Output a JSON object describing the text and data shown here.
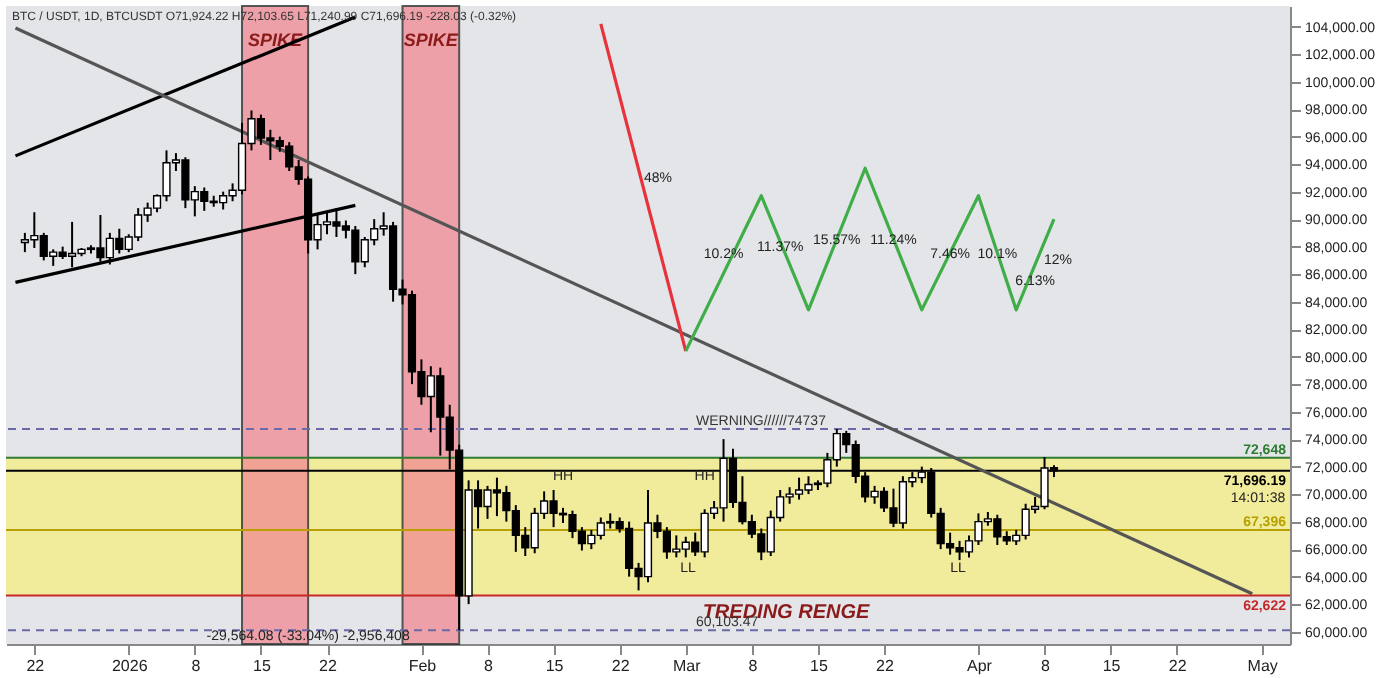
{
  "chart_data": {
    "type": "candlestick",
    "title": "BTC / USDT, 1D, BTCUSDT  O71,924.22 H72,103.65 L71,240.99 C71,696.19 -228.03 (-0.32%)",
    "x": [
      "2025-12-21",
      "2025-12-22",
      "2025-12-23",
      "2025-12-24",
      "2025-12-25",
      "2025-12-26",
      "2025-12-27",
      "2025-12-28",
      "2025-12-29",
      "2025-12-30",
      "2025-12-31",
      "2026-01-01",
      "2026-01-02",
      "2026-01-03",
      "2026-01-04",
      "2026-01-05",
      "2026-01-06",
      "2026-01-07",
      "2026-01-08",
      "2026-01-09",
      "2026-01-10",
      "2026-01-11",
      "2026-01-12",
      "2026-01-13",
      "2026-01-14",
      "2026-01-15",
      "2026-01-16",
      "2026-01-17",
      "2026-01-18",
      "2026-01-19",
      "2026-01-20",
      "2026-01-21",
      "2026-01-22",
      "2026-01-23",
      "2026-01-24",
      "2026-01-25",
      "2026-01-26",
      "2026-01-27",
      "2026-01-28",
      "2026-01-29",
      "2026-01-30",
      "2026-01-31",
      "2026-02-01",
      "2026-02-02",
      "2026-02-03",
      "2026-02-04",
      "2026-02-05",
      "2026-02-06",
      "2026-02-07",
      "2026-02-08",
      "2026-02-09",
      "2026-02-10",
      "2026-02-11",
      "2026-02-12",
      "2026-02-13",
      "2026-02-14",
      "2026-02-15",
      "2026-02-16",
      "2026-02-17",
      "2026-02-18",
      "2026-02-19",
      "2026-02-20",
      "2026-02-21",
      "2026-02-22",
      "2026-02-23",
      "2026-02-24",
      "2026-02-25",
      "2026-02-26",
      "2026-02-27",
      "2026-02-28",
      "2026-03-01",
      "2026-03-02",
      "2026-03-03",
      "2026-03-04",
      "2026-03-05",
      "2026-03-06",
      "2026-03-07",
      "2026-03-08",
      "2026-03-09",
      "2026-03-10",
      "2026-03-11",
      "2026-03-12",
      "2026-03-13",
      "2026-03-14",
      "2026-03-15",
      "2026-03-16",
      "2026-03-17",
      "2026-03-18",
      "2026-03-19",
      "2026-03-20",
      "2026-03-21",
      "2026-03-22",
      "2026-03-23",
      "2026-03-24",
      "2026-03-25",
      "2026-03-26",
      "2026-03-27",
      "2026-03-28",
      "2026-03-29",
      "2026-03-30",
      "2026-03-31",
      "2026-04-01",
      "2026-04-02",
      "2026-04-03",
      "2026-04-04",
      "2026-04-05",
      "2026-04-06",
      "2026-04-07",
      "2026-04-08",
      "2026-04-09"
    ],
    "ohlc": [
      [
        88300,
        89000,
        87600,
        88500
      ],
      [
        88500,
        90500,
        87900,
        88800
      ],
      [
        88800,
        89000,
        87000,
        87300
      ],
      [
        87300,
        87800,
        86600,
        87600
      ],
      [
        87600,
        88000,
        87100,
        87300
      ],
      [
        87300,
        89800,
        86500,
        87500
      ],
      [
        87500,
        87900,
        87300,
        87800
      ],
      [
        87800,
        88100,
        87500,
        87900
      ],
      [
        87900,
        90300,
        86900,
        87200
      ],
      [
        87200,
        89000,
        86700,
        88600
      ],
      [
        88600,
        89300,
        87500,
        87800
      ],
      [
        87800,
        88900,
        87600,
        88700
      ],
      [
        88700,
        90800,
        88400,
        90300
      ],
      [
        90300,
        91200,
        89800,
        90800
      ],
      [
        90800,
        91800,
        90500,
        91700
      ],
      [
        91700,
        95000,
        91300,
        94100
      ],
      [
        94100,
        94800,
        93500,
        94300
      ],
      [
        94300,
        94500,
        90800,
        91400
      ],
      [
        91400,
        92400,
        90200,
        92000
      ],
      [
        92000,
        92300,
        90600,
        91300
      ],
      [
        91300,
        91700,
        90900,
        91200
      ],
      [
        91200,
        92000,
        90700,
        91700
      ],
      [
        91700,
        92600,
        91300,
        92100
      ],
      [
        92100,
        97000,
        91800,
        95500
      ],
      [
        95500,
        97900,
        95000,
        97300
      ],
      [
        97300,
        97600,
        95400,
        95900
      ],
      [
        95900,
        96500,
        94300,
        95700
      ],
      [
        95700,
        96000,
        94900,
        95300
      ],
      [
        95300,
        95600,
        93500,
        93800
      ],
      [
        93800,
        94300,
        92500,
        92900
      ],
      [
        92900,
        93100,
        87500,
        88500
      ],
      [
        88500,
        90300,
        87800,
        89600
      ],
      [
        89600,
        90500,
        88900,
        89800
      ],
      [
        89800,
        90800,
        88700,
        89500
      ],
      [
        89500,
        89900,
        88600,
        89200
      ],
      [
        89200,
        89500,
        86000,
        86900
      ],
      [
        86900,
        88700,
        86500,
        88500
      ],
      [
        88500,
        90000,
        88100,
        89300
      ],
      [
        89300,
        90500,
        88800,
        89500
      ],
      [
        89500,
        89800,
        84000,
        84900
      ],
      [
        84900,
        85600,
        83800,
        84500
      ],
      [
        84500,
        84800,
        78000,
        78900
      ],
      [
        78900,
        79800,
        76500,
        77100
      ],
      [
        77100,
        79300,
        74500,
        78600
      ],
      [
        78600,
        79200,
        72800,
        75600
      ],
      [
        75600,
        76500,
        71800,
        73200
      ],
      [
        73200,
        73600,
        60100,
        62600
      ],
      [
        62600,
        71000,
        62000,
        70300
      ],
      [
        70300,
        71000,
        67500,
        69100
      ],
      [
        69100,
        70600,
        68200,
        70300
      ],
      [
        70300,
        71200,
        68400,
        70100
      ],
      [
        70100,
        70600,
        68000,
        68800
      ],
      [
        68800,
        69200,
        65800,
        67000
      ],
      [
        67000,
        67600,
        65500,
        66100
      ],
      [
        66100,
        69000,
        65700,
        68600
      ],
      [
        68600,
        70200,
        68200,
        69500
      ],
      [
        69500,
        70300,
        67600,
        68600
      ],
      [
        68600,
        69000,
        67900,
        68500
      ],
      [
        68500,
        68800,
        66800,
        67300
      ],
      [
        67300,
        67600,
        65900,
        66400
      ],
      [
        66400,
        67400,
        66000,
        67000
      ],
      [
        67000,
        68300,
        66700,
        67900
      ],
      [
        67900,
        68600,
        67500,
        68000
      ],
      [
        68000,
        68300,
        67200,
        67500
      ],
      [
        67500,
        68000,
        64000,
        64600
      ],
      [
        64600,
        65000,
        63000,
        64000
      ],
      [
        64000,
        70300,
        63600,
        67900
      ],
      [
        67900,
        68500,
        66800,
        67300
      ],
      [
        67300,
        67600,
        65300,
        65800
      ],
      [
        65800,
        67000,
        65400,
        66000
      ],
      [
        66000,
        66900,
        65400,
        66500
      ],
      [
        66500,
        67200,
        65500,
        65800
      ],
      [
        65800,
        68900,
        65400,
        68600
      ],
      [
        68600,
        69500,
        68200,
        69000
      ],
      [
        69000,
        74000,
        68000,
        72600
      ],
      [
        72600,
        73300,
        69000,
        69400
      ],
      [
        69400,
        71300,
        67800,
        68000
      ],
      [
        68000,
        68500,
        66800,
        67100
      ],
      [
        67100,
        67500,
        65200,
        65800
      ],
      [
        65800,
        68800,
        65500,
        68300
      ],
      [
        68300,
        70300,
        68000,
        69800
      ],
      [
        69800,
        70500,
        69300,
        70000
      ],
      [
        70000,
        71200,
        69600,
        70300
      ],
      [
        70300,
        71300,
        70000,
        70700
      ],
      [
        70700,
        71000,
        70300,
        70800
      ],
      [
        70800,
        73000,
        70500,
        72500
      ],
      [
        72500,
        74737,
        72000,
        74400
      ],
      [
        74400,
        74600,
        73000,
        73600
      ],
      [
        73600,
        73900,
        70800,
        71300
      ],
      [
        71300,
        71600,
        69400,
        69800
      ],
      [
        69800,
        70600,
        69300,
        70200
      ],
      [
        70200,
        70500,
        68700,
        69000
      ],
      [
        69000,
        70400,
        67600,
        67900
      ],
      [
        67900,
        71300,
        67500,
        70900
      ],
      [
        70900,
        71600,
        70500,
        71200
      ],
      [
        71200,
        72000,
        70800,
        71600
      ],
      [
        71600,
        71900,
        68300,
        68600
      ],
      [
        68600,
        69000,
        66000,
        66400
      ],
      [
        66400,
        67200,
        65600,
        66100
      ],
      [
        66100,
        66600,
        65200,
        65800
      ],
      [
        65800,
        67000,
        65400,
        66600
      ],
      [
        66600,
        68600,
        66300,
        68000
      ],
      [
        68000,
        68700,
        67700,
        68200
      ],
      [
        68200,
        68500,
        66300,
        66900
      ],
      [
        66900,
        67300,
        66300,
        66600
      ],
      [
        66600,
        67400,
        66300,
        67000
      ],
      [
        67000,
        69300,
        66700,
        68900
      ],
      [
        68900,
        69800,
        68600,
        69100
      ],
      [
        69100,
        72700,
        68900,
        71900
      ],
      [
        71924.22,
        72103.65,
        71240.99,
        71696.19
      ]
    ],
    "series": [
      {
        "type": "line",
        "color": "#000000",
        "x": [
          "2025-12-20",
          "2026-01-25"
        ],
        "values": [
          94600,
          104700
        ]
      },
      {
        "type": "line",
        "color": "#000000",
        "x": [
          "2025-12-20",
          "2026-01-25"
        ],
        "values": [
          85400,
          91000
        ]
      },
      {
        "type": "line",
        "color": "#555555",
        "x": [
          "2025-12-20",
          "2026-04-30"
        ],
        "values": [
          103900,
          62750
        ]
      },
      {
        "type": "line",
        "color": "#e8323c",
        "x": [
          "2026-02-20",
          "2026-03-01"
        ],
        "values": [
          104200,
          80400
        ]
      },
      {
        "type": "line",
        "color": "#3fae49",
        "x": [
          "2026-03-01",
          "2026-03-09",
          "2026-03-14",
          "2026-03-20",
          "2026-03-26",
          "2026-04-01",
          "2026-04-05",
          "2026-04-09"
        ],
        "values": [
          80400,
          91700,
          83400,
          93700,
          83400,
          91700,
          83400,
          90000
        ]
      }
    ],
    "xlim": [
      "2025-12-19",
      "2026-05-04"
    ],
    "xticks": [
      {
        "value": "2025-12-22",
        "label": "22"
      },
      {
        "value": "2026-01-01",
        "label": "2026"
      },
      {
        "value": "2026-01-08",
        "label": "8"
      },
      {
        "value": "2026-01-15",
        "label": "15"
      },
      {
        "value": "2026-01-22",
        "label": "22"
      },
      {
        "value": "2026-02-01",
        "label": "Feb"
      },
      {
        "value": "2026-02-08",
        "label": "8"
      },
      {
        "value": "2026-02-15",
        "label": "15"
      },
      {
        "value": "2026-02-22",
        "label": "22"
      },
      {
        "value": "2026-03-01",
        "label": "Mar"
      },
      {
        "value": "2026-03-08",
        "label": "8"
      },
      {
        "value": "2026-03-15",
        "label": "15"
      },
      {
        "value": "2026-03-22",
        "label": "22"
      },
      {
        "value": "2026-04-01",
        "label": "Apr"
      },
      {
        "value": "2026-04-08",
        "label": "8"
      },
      {
        "value": "2026-04-15",
        "label": "15"
      },
      {
        "value": "2026-04-22",
        "label": "22"
      },
      {
        "value": "2026-05-01",
        "label": "May"
      }
    ],
    "ylim": [
      59100,
      105500
    ],
    "yticks": [
      {
        "value": 60000,
        "label": "60,000.00"
      },
      {
        "value": 62000,
        "label": "62,000.00"
      },
      {
        "value": 64000,
        "label": "64,000.00"
      },
      {
        "value": 66000,
        "label": "66,000.00"
      },
      {
        "value": 68000,
        "label": "68,000.00"
      },
      {
        "value": 70000,
        "label": "70,000.00"
      },
      {
        "value": 72000,
        "label": "72,000.00"
      },
      {
        "value": 74000,
        "label": "74,000.00"
      },
      {
        "value": 76000,
        "label": "76,000.00"
      },
      {
        "value": 78000,
        "label": "78,000.00"
      },
      {
        "value": 80000,
        "label": "80,000.00"
      },
      {
        "value": 82000,
        "label": "82,000.00"
      },
      {
        "value": 84000,
        "label": "84,000.00"
      },
      {
        "value": 86000,
        "label": "86,000.00"
      },
      {
        "value": 88000,
        "label": "88,000.00"
      },
      {
        "value": 90000,
        "label": "90,000.00"
      },
      {
        "value": 92000,
        "label": "92,000.00"
      },
      {
        "value": 94000,
        "label": "94,000.00"
      },
      {
        "value": 96000,
        "label": "96,000.00"
      },
      {
        "value": 98000,
        "label": "98,000.00"
      },
      {
        "value": 100000,
        "label": "100,000.00"
      },
      {
        "value": 102000,
        "label": "102,000.00"
      },
      {
        "value": 104000,
        "label": "104,000.00"
      }
    ],
    "bands": [
      {
        "axis": "y",
        "from": 62622,
        "to": 72648,
        "label": "TREDING RENGE",
        "color": "#f3ec8e"
      },
      {
        "axis": "x",
        "from": "2026-01-13",
        "to": "2026-01-20",
        "label": "SPIKE",
        "color": "#f08a92"
      },
      {
        "axis": "x",
        "from": "2026-01-30",
        "to": "2026-02-05",
        "label": "SPIKE",
        "color": "#f08a92"
      }
    ],
    "ref_lines": [
      {
        "axis": "y",
        "value": 72648,
        "label": "72,648",
        "color": "#2e7d32"
      },
      {
        "axis": "y",
        "value": 71696.19,
        "label": "71,696.19",
        "color": "#000000"
      },
      {
        "axis": "y",
        "value": 67396,
        "label": "67,396",
        "color": "#b8a000"
      },
      {
        "axis": "y",
        "value": 62622,
        "label": "62,622",
        "color": "#c62828"
      },
      {
        "axis": "y",
        "value": 74737,
        "label": "WERNING//////74737",
        "color": "#6a6aa8",
        "line_style": "dashed"
      },
      {
        "axis": "y",
        "value": 60103.47,
        "label": "60,103.47",
        "color": "#6a6aa8",
        "line_style": "dashed"
      }
    ],
    "annotations": [
      {
        "text": "HH",
        "x": "2026-02-16",
        "y": 71300
      },
      {
        "text": "HH",
        "x": "2026-03-03",
        "y": 71300
      },
      "LL",
      "LL",
      "48%",
      {
        "text": "10.2%",
        "x": "2026-03-05",
        "y": 87500
      },
      {
        "text": "11.37%",
        "x": "2026-03-11",
        "y": 88000
      },
      {
        "text": "15.57%",
        "x": "2026-03-17",
        "y": 88500
      },
      {
        "text": "11.24%",
        "x": "2026-03-23",
        "y": 88500
      },
      {
        "text": "7.46%",
        "x": "2026-03-29",
        "y": 87500
      },
      {
        "text": "10.1%",
        "x": "2026-04-03",
        "y": 87500
      },
      {
        "text": "6.13%",
        "x": "2026-04-07",
        "y": 85500
      },
      "12%",
      {
        "text": "-29,564.08 (-33.04%) -2,956,408",
        "x": "2026-01-20",
        "y": 59700
      },
      "14:01:38"
    ]
  }
}
